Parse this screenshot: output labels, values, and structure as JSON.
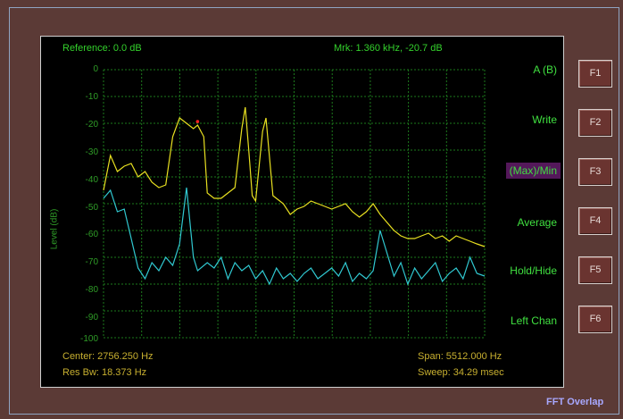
{
  "window": {
    "title": ""
  },
  "header": {
    "reference": "Reference: 0.0 dB",
    "marker": "Mrk: 1.360 kHz, -20.7 dB"
  },
  "plot": {
    "y_ticks": [
      "0",
      "-10",
      "-20",
      "-30",
      "-40",
      "-50",
      "-60",
      "-70",
      "-80",
      "-90",
      "-100"
    ],
    "y_label": "Level (dB)",
    "colors": {
      "grid": "#1d7a1d",
      "trace_a": "#e8e020",
      "trace_b": "#30c8d0",
      "marker": "#ff2020"
    }
  },
  "footer": {
    "center": "Center: 2756.250 Hz",
    "res_bw": "Res Bw: 18.373 Hz",
    "span": "Span: 5512.000 Hz",
    "sweep": "Sweep: 34.29 msec"
  },
  "softkeys": [
    {
      "label": "A (B)",
      "key": "F1"
    },
    {
      "label": "Write",
      "key": "F2"
    },
    {
      "label": "(Max)/Min",
      "key": "F3"
    },
    {
      "label": "Average",
      "key": "F4"
    },
    {
      "label": "Hold/Hide",
      "key": "F5"
    },
    {
      "label": "Left Chan",
      "key": "F6"
    }
  ],
  "mode_label": "FFT Overlap",
  "chart_data": {
    "type": "line",
    "x_range_hz": [
      0,
      5512
    ],
    "ylim": [
      -100,
      0
    ],
    "ylabel": "Level (dB)",
    "marker": {
      "x_hz": 1360,
      "y_db": -20.7
    },
    "series": [
      {
        "x_hz": [
          0,
          100,
          200,
          300,
          400,
          500,
          600,
          700,
          800,
          900,
          1000,
          1100,
          1200,
          1300,
          1360,
          1450,
          1500,
          1600,
          1700,
          1800,
          1900,
          2000,
          2050,
          2100,
          2150,
          2200,
          2300,
          2350,
          2450,
          2600,
          2700,
          2800,
          2900,
          3000,
          3100,
          3200,
          3300,
          3400,
          3500,
          3600,
          3700,
          3800,
          3900,
          4000,
          4200,
          4300,
          4400,
          4500,
          4600,
          4700,
          4800,
          4900,
          5000,
          5100,
          5200,
          5300,
          5400,
          5512
        ],
        "y_db": [
          -45,
          -32,
          -38,
          -36,
          -35,
          -40,
          -38,
          -42,
          -44,
          -43,
          -25,
          -18,
          -20,
          -22,
          -20.7,
          -25,
          -46,
          -48,
          -48,
          -46,
          -44,
          -22,
          -14,
          -30,
          -47,
          -49,
          -23,
          -18,
          -47,
          -50,
          -54,
          -52,
          -51,
          -49,
          -50,
          -51,
          -52,
          -51,
          -50,
          -53,
          -55,
          -53,
          -50,
          -54,
          -60,
          -62,
          -63,
          -63,
          -62,
          -61,
          -63,
          -62,
          -64,
          -62,
          -63,
          -64,
          -65,
          -66
        ]
      },
      {
        "x_hz": [
          0,
          100,
          200,
          300,
          400,
          500,
          600,
          700,
          800,
          900,
          1000,
          1100,
          1200,
          1300,
          1360,
          1500,
          1600,
          1700,
          1800,
          1900,
          2000,
          2100,
          2200,
          2300,
          2400,
          2500,
          2600,
          2700,
          2800,
          2900,
          3000,
          3100,
          3200,
          3300,
          3400,
          3500,
          3600,
          3700,
          3800,
          3900,
          4000,
          4200,
          4300,
          4400,
          4500,
          4600,
          4700,
          4800,
          4900,
          5000,
          5100,
          5200,
          5300,
          5400,
          5512
        ],
        "y_db": [
          -48,
          -45,
          -53,
          -52,
          -63,
          -74,
          -78,
          -72,
          -75,
          -70,
          -73,
          -65,
          -44,
          -70,
          -75,
          -72,
          -74,
          -70,
          -78,
          -72,
          -75,
          -73,
          -78,
          -75,
          -80,
          -74,
          -78,
          -76,
          -79,
          -76,
          -74,
          -78,
          -76,
          -74,
          -77,
          -72,
          -79,
          -76,
          -78,
          -75,
          -60,
          -77,
          -72,
          -80,
          -74,
          -78,
          -75,
          -72,
          -79,
          -76,
          -74,
          -78,
          -70,
          -76,
          -77
        ]
      }
    ]
  }
}
